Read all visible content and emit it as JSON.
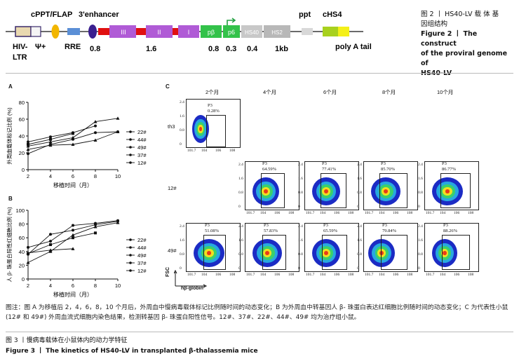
{
  "fig2": {
    "labels": {
      "cppt": "cPPT/FLAP",
      "enh": "3'enhancer",
      "ppt": "ppt",
      "chs4": "cHS4",
      "hiv": "HIV-",
      "ltr": "LTR",
      "psi": "Ψ+",
      "rre": "RRE",
      "polya": "poly A tail"
    },
    "exons": [
      "III",
      "II",
      "I"
    ],
    "promoters": [
      "pβ",
      "p6"
    ],
    "hs": [
      "HS40",
      "HS2"
    ],
    "scale": [
      "0.8",
      "1.6",
      "0.8",
      "0.3",
      "0.4",
      "1kb"
    ],
    "caption_cn_a": "图 2 丨 HS40-LV 载 体 基",
    "caption_cn_b": "因组结构",
    "caption_en_a": "Figure 2 丨 The construct",
    "caption_en_b": "of the proviral genome of",
    "caption_en_c": "HS40-LV"
  },
  "panel_a": {
    "letter": "A",
    "ylabel": "外周血载体标记比例 (%)",
    "xlabel": "移植时间（月）"
  },
  "panel_b": {
    "letter": "B",
    "ylabel": "人 β- 珠蛋白阳性红细胞比例 (%)",
    "xlabel": "移植时间（月）"
  },
  "panel_c": {
    "letter": "C",
    "months": [
      "2个月",
      "4个月",
      "6个月",
      "8个月",
      "10个月"
    ],
    "rows": [
      "th3",
      "12#",
      "49#"
    ],
    "gate_name": "P3",
    "th3": "0.28%",
    "r12": [
      "64.59%",
      "77.41%",
      "85.70%",
      "86.77%"
    ],
    "r49": [
      "51.08%",
      "57.83%",
      "65.59%",
      "79.84%",
      "88.26%"
    ],
    "fsc": "FSC",
    "hbg": "hβ-globin"
  },
  "chart_data": [
    {
      "type": "line",
      "title": "",
      "xlabel": "移植时间（月）",
      "ylabel": "外周血载体标记比例 (%)",
      "x": [
        2,
        4,
        6,
        8,
        10
      ],
      "ylim": [
        0,
        80
      ],
      "yticks": [
        0,
        20,
        40,
        60,
        80
      ],
      "legend": "right",
      "series": [
        {
          "name": "22#",
          "values": [
            33,
            39,
            44,
            52,
            null
          ]
        },
        {
          "name": "44#",
          "values": [
            30,
            36,
            43,
            null,
            null
          ]
        },
        {
          "name": "49#",
          "values": [
            28,
            33,
            38,
            57,
            61
          ]
        },
        {
          "name": "37#",
          "values": [
            24,
            29,
            30,
            35,
            45
          ]
        },
        {
          "name": "12#",
          "values": [
            19,
            30,
            36,
            44,
            45
          ]
        }
      ]
    },
    {
      "type": "line",
      "title": "",
      "xlabel": "移植时间（月）",
      "ylabel": "人 β- 珠蛋白阳性红细胞比例 (%)",
      "x": [
        2,
        4,
        6,
        8,
        10
      ],
      "ylim": [
        0,
        100
      ],
      "yticks": [
        0,
        20,
        40,
        60,
        80,
        100
      ],
      "legend": "right",
      "series": [
        {
          "name": "22#",
          "values": [
            46,
            55,
            78,
            81,
            85
          ]
        },
        {
          "name": "44#",
          "values": [
            37,
            50,
            60,
            67,
            null
          ]
        },
        {
          "name": "49#",
          "values": [
            38,
            42,
            44,
            null,
            null
          ]
        },
        {
          "name": "37#",
          "values": [
            24,
            40,
            64,
            76,
            82
          ]
        },
        {
          "name": "12#",
          "values": [
            36,
            65,
            71,
            79,
            84
          ]
        }
      ]
    }
  ],
  "notes": {
    "text": "图注：图 A 为移植后 2，4，6，8，10 个月后，外周血中慢病毒载体标记比例随时间的动态变化；B 为外周血中转基因人 β- 珠蛋白表达红细胞比例随时间的动态变化；C 为代表性小鼠 (12# 和 49#) 外周血流式细胞内染色结果，检测转基因 β- 珠蛋白阳性信号。12#、37#、22#、44#、49# 均为治疗组小鼠。",
    "fig3_cn": "图 3 丨慢病毒载体在小鼠体内的动力学特征",
    "fig3_en": "Figure 3 丨 The kinetics of HS40-LV in transplanted β-thalassemia mice"
  }
}
